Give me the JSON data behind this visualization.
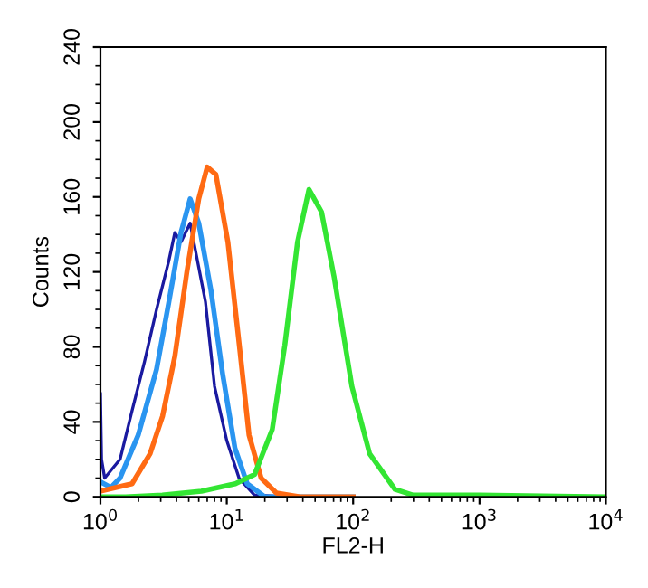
{
  "chart_data": {
    "type": "line",
    "xlabel": "FL2-H",
    "ylabel": "Counts",
    "log": "x",
    "xlim": [
      1,
      10000
    ],
    "xticks": [
      {
        "value": 1,
        "label": "10$^{0}$"
      },
      {
        "value": 10,
        "label": "10$^{1}$"
      },
      {
        "value": 100,
        "label": "10$^{2}$"
      },
      {
        "value": 1000,
        "label": "10$^{3}$"
      },
      {
        "value": 10000,
        "label": "10$^{4}$"
      }
    ],
    "ylim": [
      0,
      240
    ],
    "yticks": [
      0,
      40,
      80,
      120,
      160,
      200,
      240
    ],
    "grid": false,
    "legend": false,
    "marker": "none",
    "line_style": "solid",
    "series": [
      {
        "color": "#1a1aa0",
        "x": [
          1,
          1.02,
          1.08,
          1.43,
          1.78,
          2.23,
          2.78,
          3.48,
          3.88,
          4.34,
          5.13,
          6.78,
          8.0,
          10,
          12.5,
          16.5,
          30,
          100
        ],
        "values": [
          55,
          20,
          10,
          20,
          46,
          72,
          100,
          126,
          141,
          136,
          146,
          104,
          59,
          30,
          10,
          1,
          0,
          0
        ]
      },
      {
        "color": "#2a95f0",
        "x": [
          1,
          1.21,
          1.43,
          1.99,
          2.78,
          3.48,
          4.34,
          5.13,
          6.0,
          7.5,
          9.3,
          11.6,
          14.5,
          20,
          100
        ],
        "values": [
          8,
          5,
          10,
          33,
          68,
          104,
          141,
          159,
          146,
          110,
          65,
          26,
          7,
          0,
          0
        ]
      },
      {
        "color": "#ff6a13",
        "x": [
          1,
          1.78,
          2.47,
          3.1,
          3.88,
          4.83,
          6.0,
          7.0,
          8.2,
          10.2,
          12.7,
          15,
          18.7,
          24.7,
          38,
          100
        ],
        "values": [
          3,
          7,
          23,
          43,
          75,
          120,
          159,
          176,
          172,
          136,
          78,
          33,
          10,
          2,
          0,
          0
        ]
      },
      {
        "color": "#33e533",
        "x": [
          1,
          1.58,
          3.09,
          6.3,
          11.7,
          16.6,
          22.9,
          28.8,
          36.3,
          44.7,
          56.2,
          70.8,
          97.7,
          135,
          214,
          295,
          1000,
          10000
        ],
        "values": [
          0,
          0,
          1,
          3,
          7,
          12,
          36,
          81,
          136,
          164,
          152,
          117,
          59,
          23,
          4,
          1,
          1,
          0
        ]
      }
    ]
  }
}
